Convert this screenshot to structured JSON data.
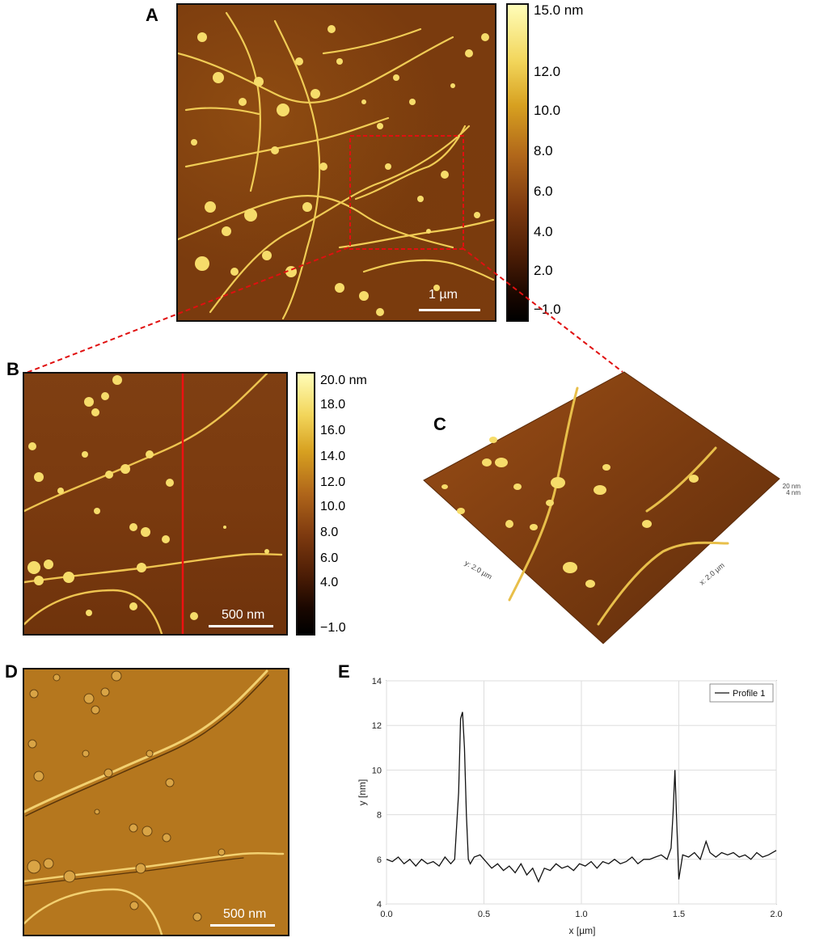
{
  "panels": {
    "A": {
      "label": "A",
      "scale_bar": "1 µm",
      "colorbar_ticks": [
        "15.0 nm",
        "12.0",
        "10.0",
        "8.0",
        "6.0",
        "4.0",
        "2.0",
        "−1.0"
      ]
    },
    "B": {
      "label": "B",
      "scale_bar": "500 nm",
      "colorbar_ticks": [
        "20.0 nm",
        "18.0",
        "16.0",
        "14.0",
        "12.0",
        "10.0",
        "8.0",
        "6.0",
        "4.0",
        "−1.0"
      ]
    },
    "C": {
      "label": "C",
      "y_axis_label": "y: 2.0 µm",
      "x_axis_label": "x: 2.0 µm",
      "z_label_top": "20 nm",
      "z_label_bottom": "4 nm"
    },
    "D": {
      "label": "D",
      "scale_bar": "500 nm"
    },
    "E": {
      "label": "E"
    }
  },
  "colors": {
    "afm_dark": "#7a3b0e",
    "afm_fiber": "#f2d55a",
    "zoom_box": "#e01010",
    "profile_line": "#ee1111",
    "profile_curve": "#111111"
  },
  "chart_data": {
    "type": "line",
    "xlabel": "x [µm]",
    "ylabel": "y [nm]",
    "xlim": [
      0.0,
      2.0
    ],
    "ylim": [
      4,
      14
    ],
    "x_ticks": [
      "0.0",
      "0.5",
      "1.0",
      "1.5",
      "2.0"
    ],
    "y_ticks": [
      "4",
      "6",
      "8",
      "10",
      "12",
      "14"
    ],
    "grid": true,
    "legend_position": "top-right",
    "series": [
      {
        "name": "Profile 1",
        "x": [
          0.0,
          0.03,
          0.06,
          0.09,
          0.12,
          0.15,
          0.18,
          0.21,
          0.24,
          0.27,
          0.3,
          0.33,
          0.35,
          0.37,
          0.38,
          0.39,
          0.4,
          0.41,
          0.42,
          0.43,
          0.45,
          0.48,
          0.51,
          0.54,
          0.57,
          0.6,
          0.63,
          0.66,
          0.69,
          0.72,
          0.75,
          0.78,
          0.81,
          0.84,
          0.87,
          0.9,
          0.93,
          0.96,
          0.99,
          1.02,
          1.05,
          1.08,
          1.11,
          1.14,
          1.17,
          1.2,
          1.23,
          1.26,
          1.29,
          1.32,
          1.35,
          1.38,
          1.41,
          1.44,
          1.46,
          1.47,
          1.48,
          1.49,
          1.5,
          1.52,
          1.55,
          1.58,
          1.61,
          1.64,
          1.66,
          1.69,
          1.72,
          1.75,
          1.78,
          1.81,
          1.84,
          1.87,
          1.9,
          1.93,
          1.96,
          2.0
        ],
        "y": [
          6.0,
          5.9,
          6.1,
          5.8,
          6.0,
          5.7,
          6.0,
          5.8,
          5.9,
          5.7,
          6.1,
          5.8,
          6.0,
          9.0,
          12.3,
          12.6,
          11.0,
          8.0,
          6.0,
          5.8,
          6.1,
          6.2,
          5.9,
          5.6,
          5.8,
          5.5,
          5.7,
          5.4,
          5.8,
          5.3,
          5.6,
          5.0,
          5.6,
          5.5,
          5.8,
          5.6,
          5.7,
          5.5,
          5.8,
          5.7,
          5.9,
          5.6,
          5.9,
          5.8,
          6.0,
          5.8,
          5.9,
          6.1,
          5.8,
          6.0,
          6.0,
          6.1,
          6.2,
          6.0,
          6.5,
          8.0,
          10.0,
          7.5,
          5.1,
          6.2,
          6.1,
          6.3,
          6.0,
          6.8,
          6.3,
          6.1,
          6.3,
          6.2,
          6.3,
          6.1,
          6.2,
          6.0,
          6.3,
          6.1,
          6.2,
          6.4
        ]
      }
    ]
  }
}
